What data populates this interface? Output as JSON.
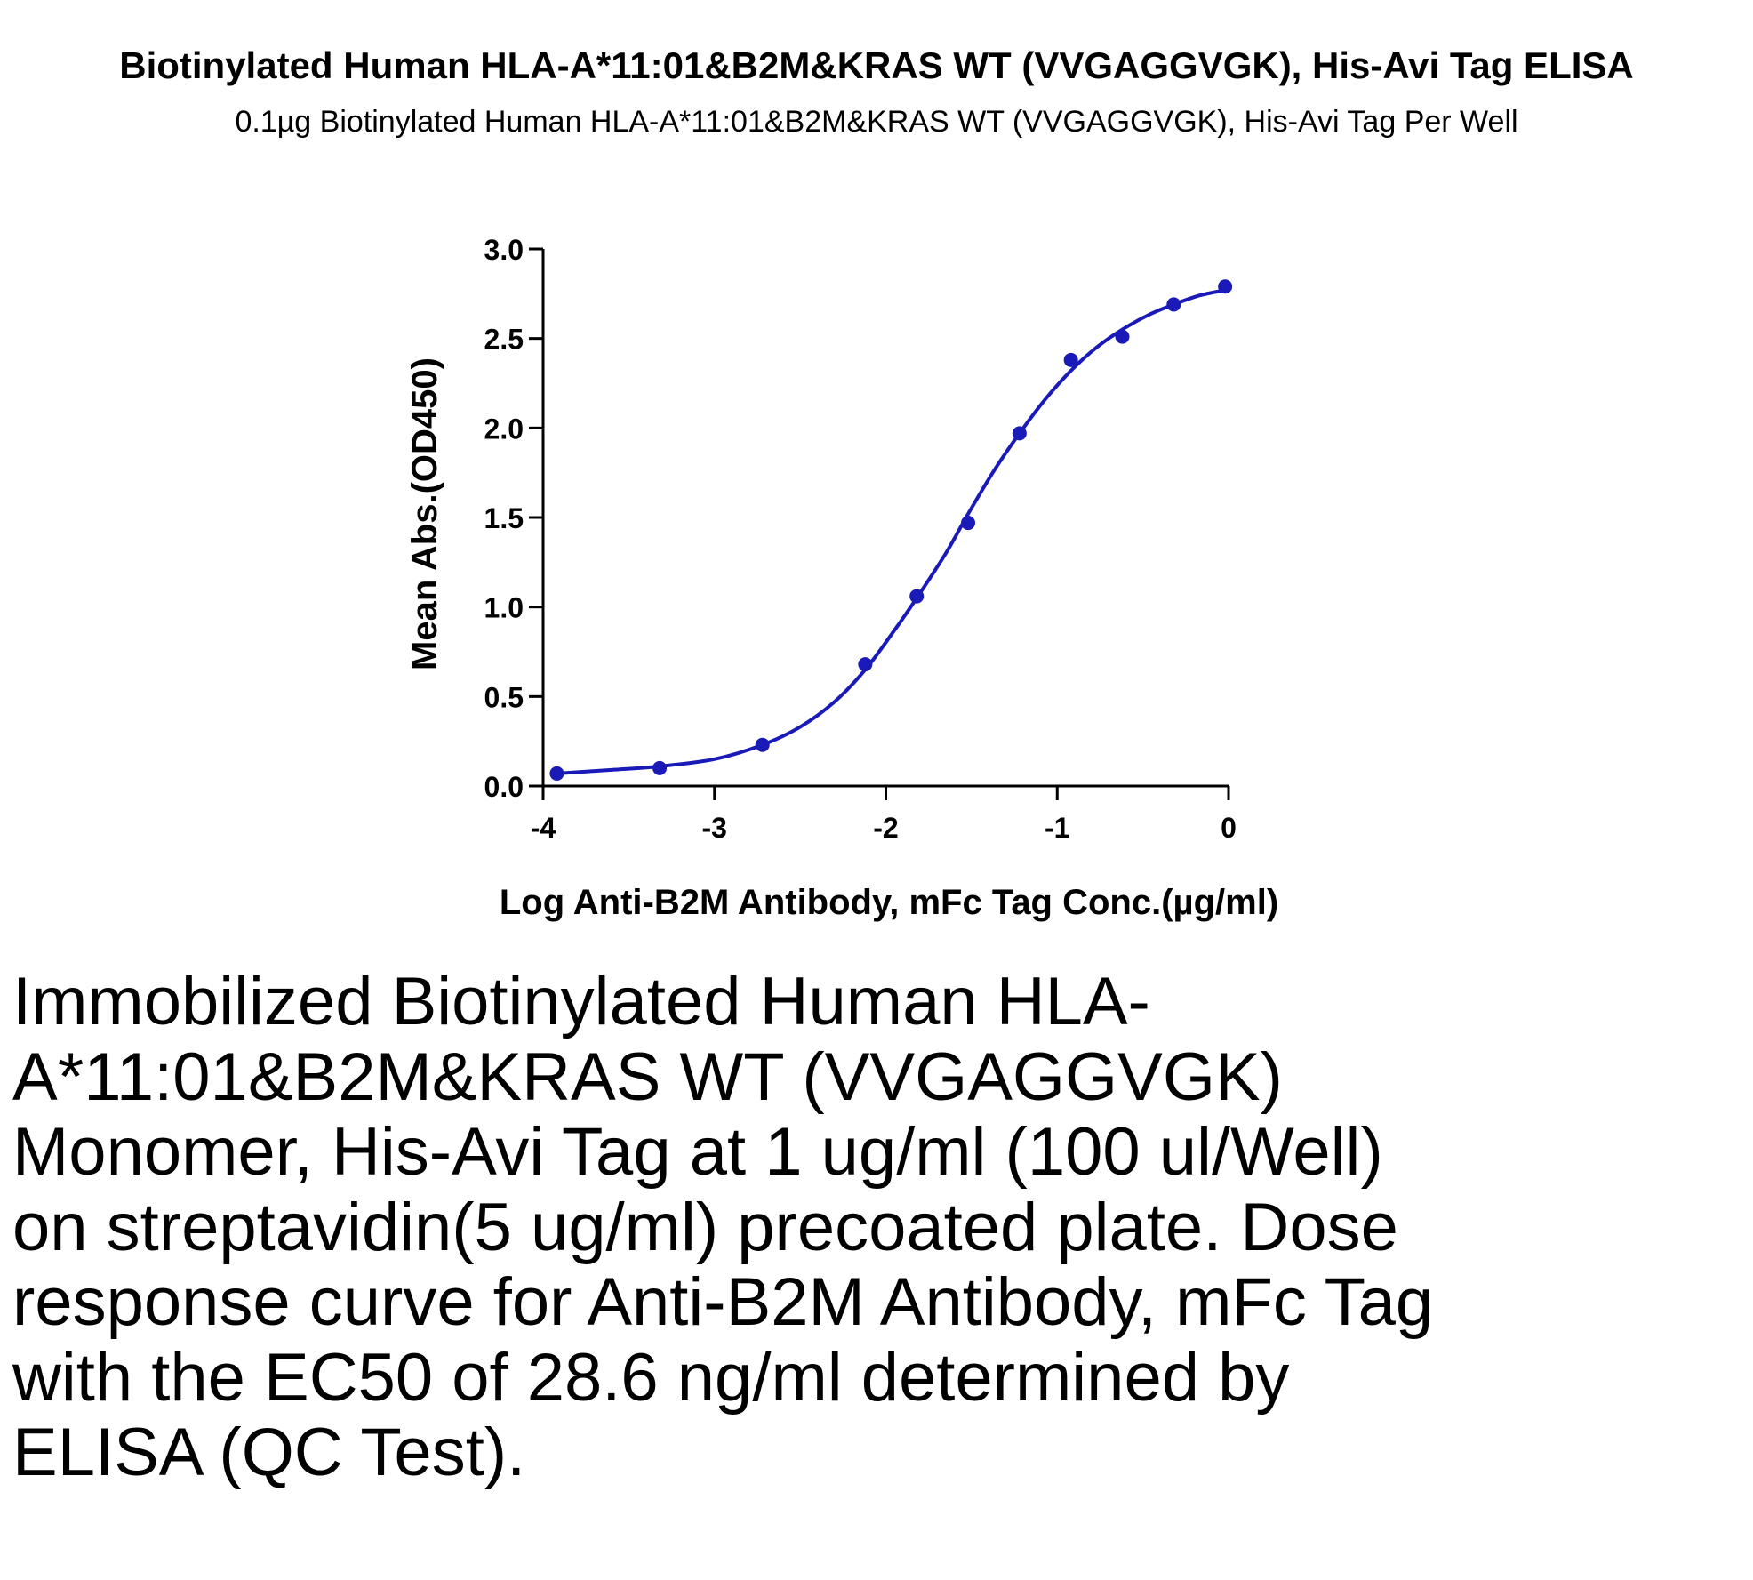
{
  "chart_data": {
    "type": "scatter",
    "title": "Biotinylated Human HLA-A*11:01&B2M&KRAS WT (VVGAGGVGK), His-Avi Tag ELISA",
    "subtitle": "0.1µg Biotinylated Human HLA-A*11:01&B2M&KRAS WT (VVGAGGVGK), His-Avi Tag Per Well",
    "xlabel": "Log Anti-B2M Antibody, mFc Tag Conc.(µg/ml)",
    "ylabel": "Mean Abs.(OD450)",
    "xlim": [
      -4,
      0
    ],
    "ylim": [
      0,
      3
    ],
    "x_ticks": [
      -4,
      -3,
      -2,
      -1,
      0
    ],
    "x_tick_labels": [
      "-4",
      "-3",
      "-2",
      "-1",
      "0"
    ],
    "y_ticks": [
      0,
      0.5,
      1,
      1.5,
      2,
      2.5,
      3
    ],
    "y_tick_labels": [
      "0.0",
      "0.5",
      "1.0",
      "1.5",
      "2.0",
      "2.5",
      "3.0"
    ],
    "grid": false,
    "color": "#1a1ab8",
    "series": [
      {
        "points": [
          {
            "x": -3.92,
            "y": 0.07
          },
          {
            "x": -3.32,
            "y": 0.1
          },
          {
            "x": -2.72,
            "y": 0.23
          },
          {
            "x": -2.12,
            "y": 0.68
          },
          {
            "x": -1.82,
            "y": 1.06
          },
          {
            "x": -1.52,
            "y": 1.47
          },
          {
            "x": -1.22,
            "y": 1.97
          },
          {
            "x": -0.92,
            "y": 2.38
          },
          {
            "x": -0.62,
            "y": 2.51
          },
          {
            "x": -0.32,
            "y": 2.69
          },
          {
            "x": -0.02,
            "y": 2.79
          }
        ],
        "fit_curve": [
          {
            "x": -3.92,
            "y": 0.07
          },
          {
            "x": -3.6,
            "y": 0.09
          },
          {
            "x": -3.32,
            "y": 0.11
          },
          {
            "x": -3.0,
            "y": 0.15
          },
          {
            "x": -2.72,
            "y": 0.23
          },
          {
            "x": -2.5,
            "y": 0.33
          },
          {
            "x": -2.3,
            "y": 0.47
          },
          {
            "x": -2.12,
            "y": 0.65
          },
          {
            "x": -1.95,
            "y": 0.87
          },
          {
            "x": -1.82,
            "y": 1.05
          },
          {
            "x": -1.65,
            "y": 1.3
          },
          {
            "x": -1.52,
            "y": 1.52
          },
          {
            "x": -1.37,
            "y": 1.76
          },
          {
            "x": -1.22,
            "y": 1.97
          },
          {
            "x": -1.07,
            "y": 2.16
          },
          {
            "x": -0.92,
            "y": 2.32
          },
          {
            "x": -0.77,
            "y": 2.45
          },
          {
            "x": -0.62,
            "y": 2.55
          },
          {
            "x": -0.47,
            "y": 2.63
          },
          {
            "x": -0.32,
            "y": 2.69
          },
          {
            "x": -0.17,
            "y": 2.74
          },
          {
            "x": -0.02,
            "y": 2.77
          }
        ]
      }
    ]
  },
  "caption": "Immobilized Biotinylated Human HLA-A*11:01&B2M&KRAS WT (VVGAGGVGK) Monomer, His-Avi Tag at 1 ug/ml (100 ul/Well) on streptavidin(5 ug/ml) precoated plate. Dose response curve for Anti-B2M Antibody, mFc Tag with the EC50 of 28.6 ng/ml determined by ELISA (QC Test)."
}
